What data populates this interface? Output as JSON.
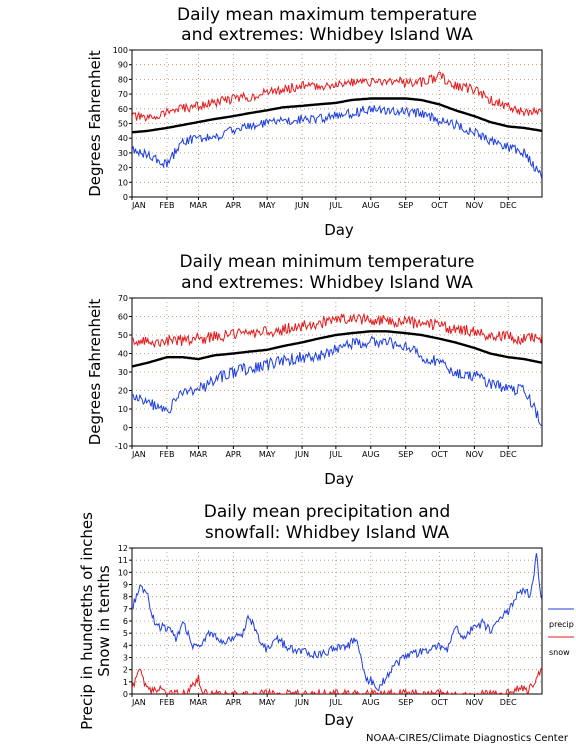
{
  "credit": "NOAA-CIRES/Climate Diagnostics Center",
  "chart_data": [
    {
      "type": "line",
      "title": "Daily mean maximum temperature",
      "subtitle": "and extremes: Whidbey Island WA",
      "xlabel": "Day",
      "ylabel": "Degrees Fahrenheit",
      "ylim": [
        0,
        100
      ],
      "yticks": [
        0,
        10,
        20,
        30,
        40,
        50,
        60,
        70,
        80,
        90,
        100
      ],
      "x_tick_labels": [
        "JAN",
        "FEB",
        "MAR",
        "APR",
        "MAY",
        "JUN",
        "JUL",
        "AUG",
        "SEP",
        "OCT",
        "NOV",
        "DEC"
      ],
      "grid": true,
      "series": [
        {
          "color": "#e41a1c",
          "day": [
            1,
            15,
            32,
            46,
            60,
            74,
            91,
            105,
            121,
            135,
            152,
            166,
            182,
            196,
            213,
            227,
            244,
            258,
            274,
            288,
            305,
            319,
            335,
            349,
            365
          ],
          "values": [
            55,
            53,
            58,
            60,
            62,
            64,
            67,
            68,
            71,
            73,
            76,
            75,
            77,
            78,
            78,
            79,
            78,
            78,
            82,
            76,
            73,
            66,
            62,
            58,
            58
          ]
        },
        {
          "color": "#000000",
          "day": [
            1,
            15,
            32,
            46,
            60,
            74,
            91,
            105,
            121,
            135,
            152,
            166,
            182,
            196,
            213,
            227,
            244,
            258,
            274,
            288,
            305,
            319,
            335,
            349,
            365
          ],
          "values": [
            44,
            45,
            47,
            49,
            51,
            53,
            55,
            57,
            59,
            61,
            62,
            63,
            64,
            66,
            67,
            67,
            67,
            66,
            63,
            59,
            55,
            51,
            48,
            47,
            45
          ]
        },
        {
          "color": "#1f3fdc",
          "day": [
            1,
            15,
            32,
            46,
            60,
            74,
            91,
            105,
            121,
            135,
            152,
            166,
            182,
            196,
            213,
            227,
            244,
            258,
            274,
            288,
            305,
            319,
            335,
            349,
            365
          ],
          "values": [
            33,
            28,
            22,
            38,
            40,
            40,
            46,
            48,
            50,
            52,
            53,
            53,
            55,
            57,
            60,
            59,
            58,
            57,
            52,
            49,
            44,
            38,
            34,
            30,
            14
          ]
        }
      ]
    },
    {
      "type": "line",
      "title": "Daily mean minimum temperature",
      "subtitle": "and extremes: Whidbey Island WA",
      "xlabel": "Day",
      "ylabel": "Degrees Fahrenheit",
      "ylim": [
        -10,
        70
      ],
      "yticks": [
        -10,
        0,
        10,
        20,
        30,
        40,
        50,
        60,
        70
      ],
      "x_tick_labels": [
        "JAN",
        "FEB",
        "MAR",
        "APR",
        "MAY",
        "JUN",
        "JUL",
        "AUG",
        "SEP",
        "OCT",
        "NOV",
        "DEC"
      ],
      "grid": true,
      "series": [
        {
          "color": "#e41a1c",
          "day": [
            1,
            15,
            32,
            46,
            60,
            74,
            91,
            105,
            121,
            135,
            152,
            166,
            182,
            196,
            213,
            227,
            244,
            258,
            274,
            288,
            305,
            319,
            335,
            349,
            365
          ],
          "values": [
            46,
            46,
            47,
            47,
            48,
            49,
            50,
            51,
            52,
            53,
            55,
            56,
            58,
            59,
            58,
            58,
            57,
            56,
            55,
            53,
            52,
            50,
            49,
            48,
            48
          ]
        },
        {
          "color": "#000000",
          "day": [
            1,
            15,
            32,
            46,
            60,
            74,
            91,
            105,
            121,
            135,
            152,
            166,
            182,
            196,
            213,
            227,
            244,
            258,
            274,
            288,
            305,
            319,
            335,
            349,
            365
          ],
          "values": [
            33,
            35,
            38,
            38,
            37,
            39,
            40,
            41,
            42,
            44,
            46,
            48,
            50,
            51,
            52,
            52,
            51,
            50,
            48,
            46,
            43,
            40,
            38,
            37,
            35
          ]
        },
        {
          "color": "#1f3fdc",
          "day": [
            1,
            15,
            32,
            46,
            60,
            74,
            91,
            105,
            121,
            135,
            152,
            166,
            182,
            196,
            213,
            227,
            244,
            258,
            274,
            288,
            305,
            319,
            335,
            349,
            365
          ],
          "values": [
            18,
            14,
            8,
            20,
            20,
            26,
            30,
            32,
            34,
            36,
            38,
            39,
            42,
            45,
            47,
            46,
            44,
            38,
            36,
            30,
            28,
            24,
            20,
            22,
            2
          ]
        }
      ]
    },
    {
      "type": "line",
      "title": "Daily mean precipitation and",
      "subtitle": "snowfall: Whidbey Island WA",
      "xlabel": "Day",
      "ylabel": "Precip in hundreths of inches",
      "ylabel2": "Snow in tenths",
      "ylim": [
        0,
        12
      ],
      "yticks": [
        0,
        1,
        2,
        3,
        4,
        5,
        6,
        7,
        8,
        9,
        10,
        11,
        12
      ],
      "x_tick_labels": [
        "JAN",
        "FEB",
        "MAR",
        "APR",
        "MAY",
        "JUN",
        "JUL",
        "AUG",
        "SEP",
        "OCT",
        "NOV",
        "DEC"
      ],
      "grid": true,
      "legend": "right",
      "series": [
        {
          "name": "precip",
          "color": "#1f3fdc",
          "day": [
            1,
            8,
            15,
            22,
            32,
            40,
            46,
            55,
            60,
            70,
            80,
            91,
            100,
            105,
            115,
            121,
            130,
            140,
            152,
            166,
            182,
            190,
            200,
            210,
            213,
            220,
            227,
            235,
            244,
            258,
            274,
            280,
            288,
            295,
            305,
            312,
            319,
            328,
            335,
            342,
            349,
            355,
            360,
            365
          ],
          "values": [
            7,
            9,
            8,
            5.5,
            5.5,
            4.5,
            6,
            4,
            3.8,
            5,
            4.2,
            4.7,
            5,
            6.5,
            4.2,
            3.7,
            4.5,
            3.8,
            3.5,
            3.2,
            3.8,
            3.8,
            4.5,
            1,
            1.1,
            0.6,
            1.4,
            2.5,
            3,
            3.5,
            4,
            3.5,
            5.5,
            4.7,
            5.5,
            5.8,
            5.2,
            6.5,
            6.7,
            8,
            8.5,
            8,
            11.5,
            7.5
          ]
        },
        {
          "name": "snow",
          "color": "#e41a1c",
          "day": [
            1,
            5,
            8,
            12,
            16,
            22,
            30,
            40,
            50,
            55,
            60,
            64,
            70,
            80,
            120,
            200,
            280,
            330,
            338,
            345,
            352,
            358,
            365
          ],
          "values": [
            0.3,
            1.5,
            2,
            0.8,
            0.3,
            0.5,
            0.1,
            0,
            0.1,
            0.8,
            1.3,
            0.2,
            0,
            0,
            0,
            0,
            0,
            0,
            0.3,
            0.5,
            0.3,
            1,
            1.9
          ]
        }
      ]
    }
  ]
}
